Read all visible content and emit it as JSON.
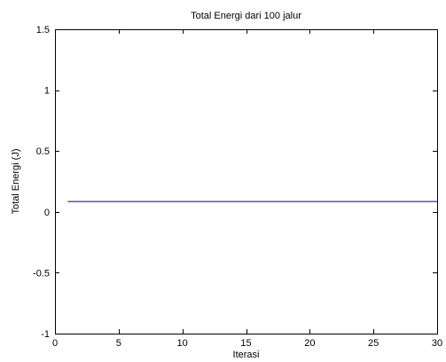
{
  "chart_data": {
    "type": "line",
    "title": "Total Energi dari 100 jalur",
    "xlabel": "Iterasi",
    "ylabel": "Total Energi (J)",
    "xlim": [
      0,
      30
    ],
    "ylim": [
      -1,
      1.5
    ],
    "xticks": [
      "0",
      "5",
      "10",
      "15",
      "20",
      "25",
      "30"
    ],
    "yticks": [
      "-1",
      "-0.5",
      "0",
      "0.5",
      "1",
      "1.5"
    ],
    "grid": false,
    "series": [
      {
        "x": [
          1,
          30
        ],
        "y": [
          0.085,
          0.085
        ],
        "color": "#000080"
      }
    ]
  }
}
